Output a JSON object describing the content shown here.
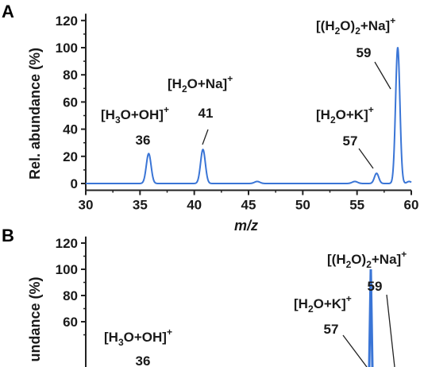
{
  "chart_data": [
    {
      "panel": "A",
      "type": "line",
      "xlabel": "m/z",
      "ylabel": "Rel. abundance (%)",
      "xlim": [
        30,
        60
      ],
      "ylim": [
        -5,
        125
      ],
      "xticks": [
        30,
        35,
        40,
        45,
        50,
        55,
        60
      ],
      "yticks": [
        0,
        20,
        40,
        60,
        80,
        100,
        120
      ],
      "line_color": "#3a75d6",
      "peaks": [
        {
          "x": 35.8,
          "y": 22,
          "width": 0.22
        },
        {
          "x": 40.8,
          "y": 25,
          "width": 0.22
        },
        {
          "x": 45.8,
          "y": 1.5,
          "width": 0.25
        },
        {
          "x": 54.8,
          "y": 1.5,
          "width": 0.25
        },
        {
          "x": 56.8,
          "y": 7.5,
          "width": 0.2
        },
        {
          "x": 58.75,
          "y": 100,
          "width": 0.2
        },
        {
          "x": 59.8,
          "y": 1.5,
          "width": 0.2
        }
      ],
      "annotations": [
        {
          "label_parts": [
            "[H",
            "3",
            "O+OH]",
            "+"
          ],
          "number": "36",
          "peak_x": 35.8
        },
        {
          "label_parts": [
            "[H",
            "2",
            "O+Na]",
            "+"
          ],
          "number": "41",
          "peak_x": 40.8
        },
        {
          "label_parts": [
            "[H",
            "2",
            "O+K]",
            "+"
          ],
          "number": "57",
          "peak_x": 56.8
        },
        {
          "label_parts": [
            "[(H",
            "2",
            "O)",
            "2",
            "+Na]",
            "+"
          ],
          "number": "59",
          "peak_x": 58.75
        }
      ]
    },
    {
      "panel": "B",
      "type": "line",
      "xlabel": "",
      "ylabel": "Rel. abundance (%)",
      "ylabel_visible": "undance (%)",
      "ylim": [
        -5,
        125
      ],
      "yticks": [
        60,
        80,
        100,
        120
      ],
      "line_color": "#3a75d6",
      "peaks": [
        {
          "x": 57.2,
          "y": 100,
          "width": 0.12
        }
      ],
      "annotations": [
        {
          "label_parts": [
            "[H",
            "3",
            "O+OH]",
            "+"
          ],
          "number": "36"
        },
        {
          "label_parts": [
            "[H",
            "2",
            "O+K]",
            "+"
          ],
          "number": "57"
        },
        {
          "label_parts": [
            "[(H",
            "2",
            "O)",
            "2",
            "+Na]",
            "+"
          ],
          "number": "59"
        }
      ]
    }
  ]
}
